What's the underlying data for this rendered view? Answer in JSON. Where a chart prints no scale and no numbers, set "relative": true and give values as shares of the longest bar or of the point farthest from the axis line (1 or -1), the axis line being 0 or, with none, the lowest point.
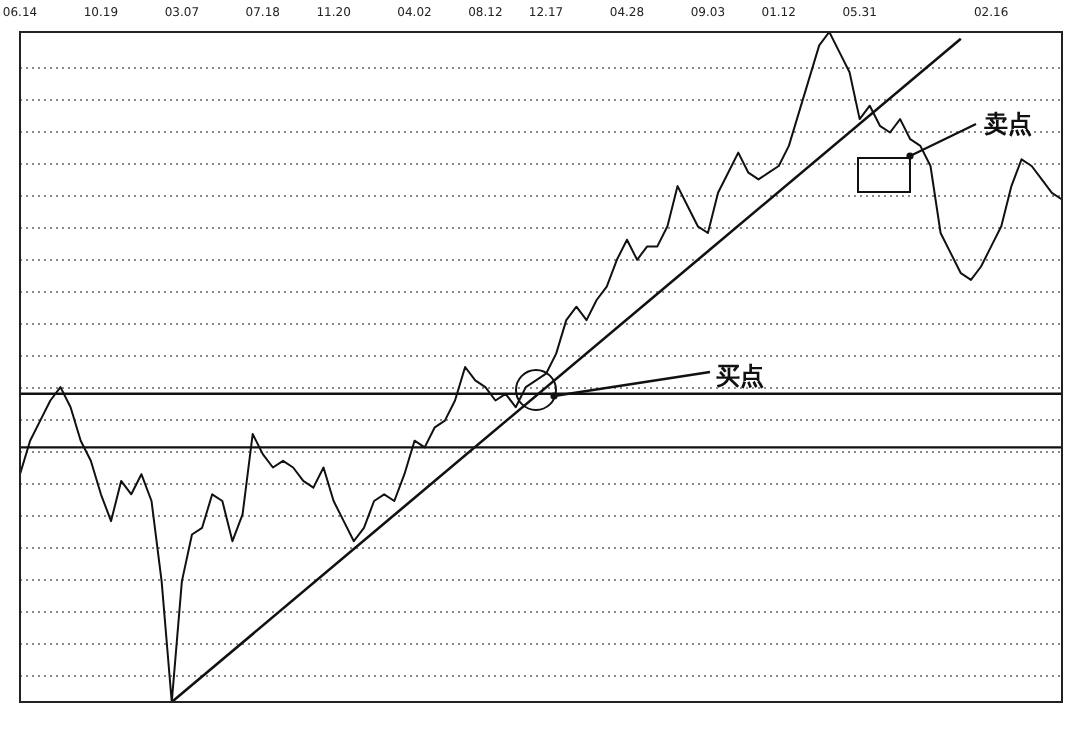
{
  "chart_data": {
    "type": "line",
    "relative": true,
    "grid": "y",
    "categories": [
      "06.14",
      null,
      null,
      null,
      null,
      null,
      null,
      null,
      "10.19",
      null,
      null,
      null,
      null,
      null,
      null,
      null,
      "03.07",
      null,
      null,
      null,
      null,
      null,
      null,
      null,
      "07.18",
      null,
      null,
      null,
      null,
      null,
      null,
      "11.20",
      null,
      null,
      null,
      null,
      null,
      null,
      null,
      "04.02",
      null,
      null,
      null,
      null,
      null,
      null,
      "08.12",
      null,
      null,
      null,
      null,
      null,
      "12.17",
      null,
      null,
      null,
      null,
      null,
      null,
      null,
      "04.28",
      null,
      null,
      null,
      null,
      null,
      null,
      null,
      "09.03",
      null,
      null,
      null,
      null,
      null,
      null,
      "01.12",
      null,
      null,
      null,
      null,
      null,
      null,
      null,
      "05.31",
      null,
      null,
      null,
      null,
      null,
      null,
      null,
      null,
      null,
      null,
      null,
      null,
      "02.16",
      null,
      null,
      null,
      null,
      null,
      null,
      null
    ],
    "series": [
      {
        "color": "#111111",
        "values": [
          0.34,
          0.39,
          0.42,
          0.45,
          0.47,
          0.44,
          0.39,
          0.36,
          0.31,
          0.27,
          0.33,
          0.31,
          0.34,
          0.3,
          0.18,
          0,
          0.18,
          0.25,
          0.26,
          0.31,
          0.3,
          0.24,
          0.28,
          0.4,
          0.37,
          0.35,
          0.36,
          0.35,
          0.33,
          0.32,
          0.35,
          0.3,
          0.27,
          0.24,
          0.26,
          0.3,
          0.31,
          0.3,
          0.34,
          0.39,
          0.38,
          0.41,
          0.42,
          0.45,
          0.5,
          0.48,
          0.47,
          0.45,
          0.46,
          0.44,
          0.47,
          0.48,
          0.49,
          0.52,
          0.57,
          0.59,
          0.57,
          0.6,
          0.62,
          0.66,
          0.69,
          0.66,
          0.68,
          0.68,
          0.71,
          0.77,
          0.74,
          0.71,
          0.7,
          0.76,
          0.79,
          0.82,
          0.79,
          0.78,
          0.79,
          0.8,
          0.83,
          0.88,
          0.93,
          0.98,
          1,
          0.97,
          0.94,
          0.87,
          0.89,
          0.86,
          0.85,
          0.87,
          0.84,
          0.83,
          0.8,
          0.7,
          0.67,
          0.64,
          0.63,
          0.65,
          0.68,
          0.71,
          0.77,
          0.81,
          0.8,
          0.78,
          0.76,
          0.75
        ]
      },
      {
        "type": "line",
        "color": "#111111",
        "values": [
          null,
          null,
          null,
          null,
          null,
          null,
          null,
          null,
          null,
          null,
          null,
          null,
          null,
          null,
          null,
          0,
          null,
          null,
          null,
          null,
          null,
          null,
          null,
          null,
          null,
          null,
          null,
          null,
          null,
          null,
          null,
          null,
          null,
          null,
          null,
          null,
          null,
          null,
          null,
          null,
          null,
          null,
          null,
          null,
          null,
          null,
          null,
          null,
          null,
          null,
          null,
          null,
          null,
          null,
          null,
          null,
          null,
          null,
          null,
          null,
          null,
          null,
          null,
          null,
          null,
          null,
          null,
          null,
          null,
          null,
          null,
          null,
          null,
          null,
          null,
          null,
          null,
          null,
          null,
          null,
          null,
          null,
          null,
          null,
          null,
          null,
          null,
          null,
          null,
          null,
          null,
          null,
          null,
          0.99,
          null,
          null,
          null,
          null,
          null,
          null,
          null,
          null,
          null,
          null
        ]
      }
    ],
    "ref_lines": [
      {
        "axis": "y",
        "value": 0.46,
        "color": "#111111"
      },
      {
        "axis": "y",
        "value": 0.38,
        "color": "#111111"
      }
    ],
    "annotations": [
      "买点",
      "卖点"
    ]
  }
}
